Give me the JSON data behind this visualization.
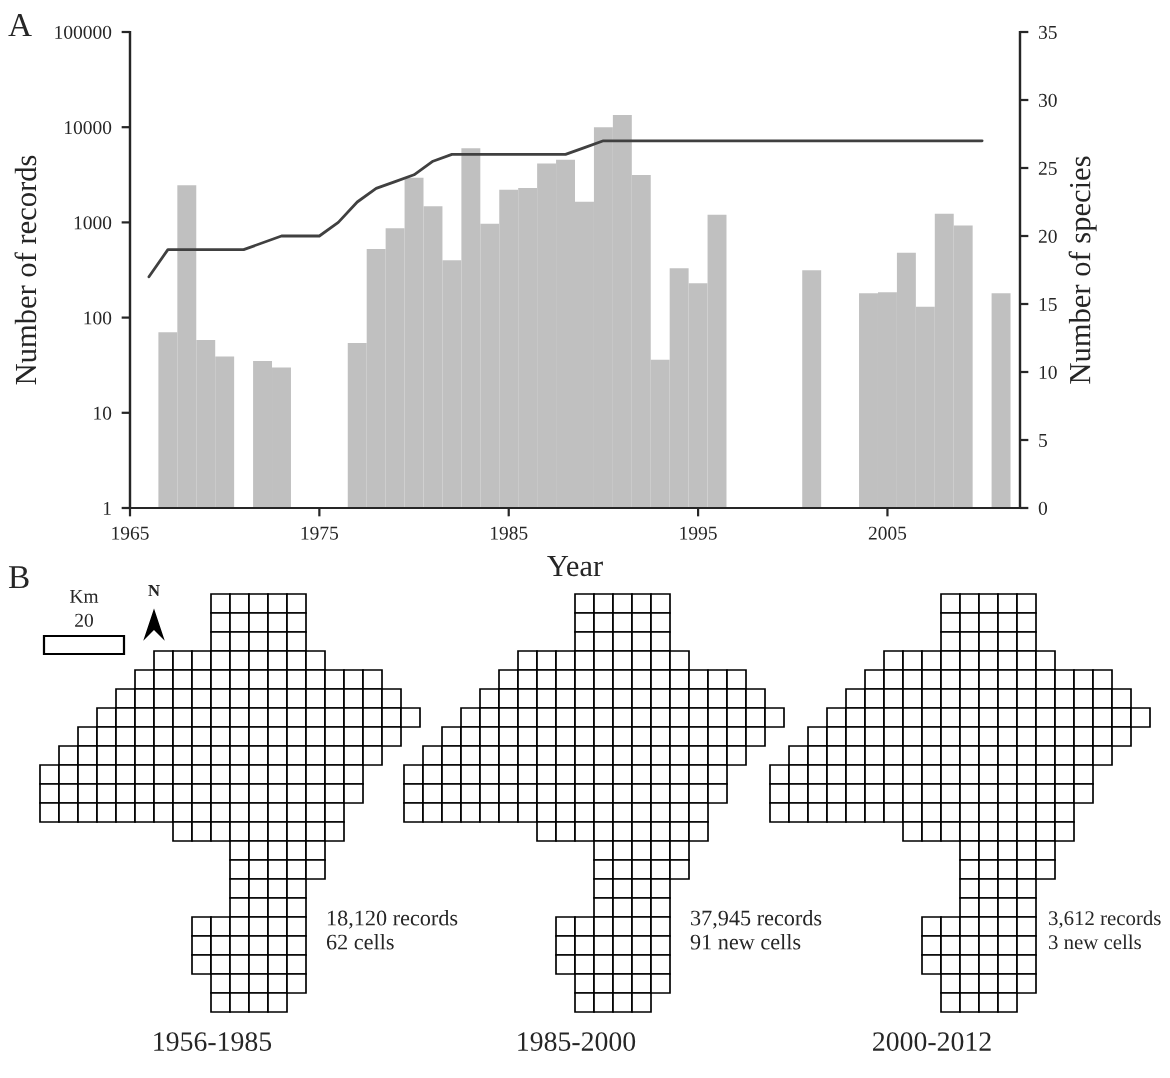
{
  "chart_data": [
    {
      "type": "bar",
      "title": "A",
      "xlabel": "Year",
      "ylabel": "Number of records",
      "y2label": "Number of species",
      "log": "y",
      "grid": false,
      "xlim": [
        1965,
        2012
      ],
      "xticks": [
        1965,
        1975,
        1985,
        1995,
        2005
      ],
      "ylim": [
        1,
        100000
      ],
      "yticks": [
        1,
        10,
        100,
        1000,
        10000,
        100000
      ],
      "y2lim": [
        0,
        35
      ],
      "y2ticks": [
        0,
        5,
        10,
        15,
        20,
        25,
        30,
        35
      ],
      "series": [
        {
          "type": "bar",
          "color": "#c0c0c0",
          "x": [
            1967,
            1968,
            1969,
            1970,
            1972,
            1973,
            1977,
            1978,
            1979,
            1980,
            1981,
            1982,
            1983,
            1984,
            1985,
            1986,
            1987,
            1988,
            1989,
            1990,
            1991,
            1992,
            1993,
            1994,
            1995,
            1996,
            2001,
            2004,
            2005,
            2006,
            2007,
            2008,
            2009,
            2011
          ],
          "values": [
            70,
            2450,
            58,
            39,
            35,
            30,
            54,
            525,
            870,
            2950,
            1480,
            400,
            6000,
            970,
            2200,
            2300,
            4150,
            4550,
            1650,
            10000,
            13400,
            3140,
            36,
            330,
            230,
            1200,
            315,
            180,
            185,
            480,
            130,
            1230,
            930,
            180
          ]
        },
        {
          "type": "line",
          "axis": "y2",
          "color": "#404040",
          "x": [
            1966,
            1967,
            1971,
            1973,
            1975,
            1976,
            1977,
            1978,
            1979,
            1980,
            1981,
            1982,
            1988,
            1989,
            1990,
            2010
          ],
          "values": [
            17,
            19,
            19,
            20,
            20,
            21,
            22.5,
            23.5,
            24,
            24.5,
            25.5,
            26,
            26,
            26.5,
            27,
            27
          ]
        }
      ]
    },
    {
      "type": "other",
      "title": "B",
      "annotations": [
        "Km",
        "20",
        "N",
        "18,120 records",
        "62 cells",
        "37,945 records",
        "91 new cells",
        "3,612 records",
        "3 new cells",
        "1956-1985",
        "1985-2000",
        "2000-2012"
      ]
    }
  ]
}
